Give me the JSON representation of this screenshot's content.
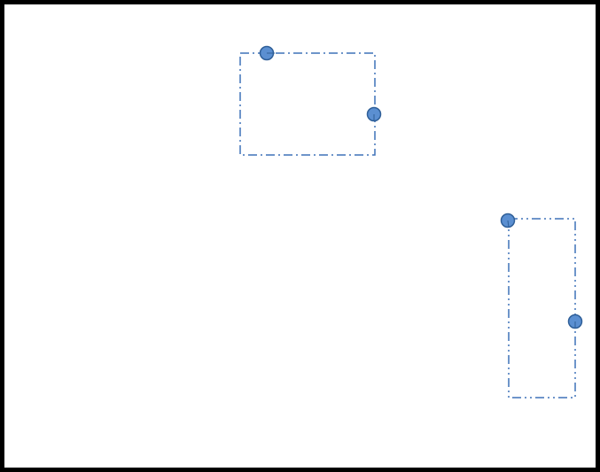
{
  "colors": {
    "frame": "#000000",
    "outline": "#3f72b8",
    "handle_fill": "#5b8fd1",
    "handle_stroke": "#2f5f98"
  },
  "frame": {
    "name": "drawing-canvas-border"
  },
  "shapes": [
    {
      "name": "selection-rectangle-top",
      "line_style": "dash-dot",
      "handles": [
        "top-left-handle",
        "right-middle-handle"
      ]
    },
    {
      "name": "selection-rectangle-right",
      "line_style": "dash-dot-dot",
      "handles": [
        "top-left-handle",
        "right-middle-handle"
      ]
    }
  ]
}
